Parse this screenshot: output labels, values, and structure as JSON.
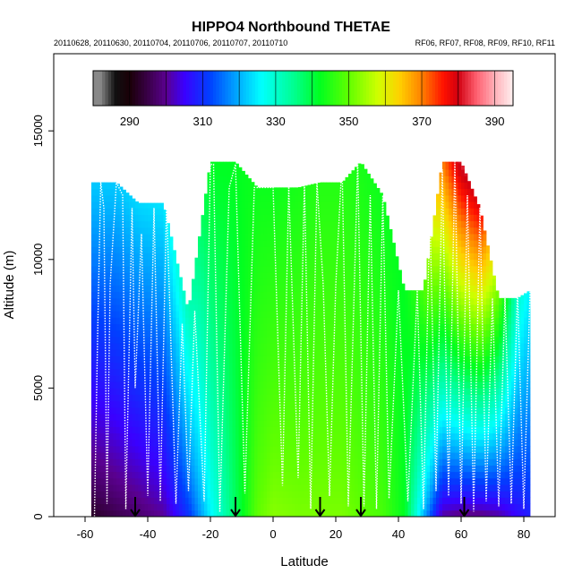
{
  "chart_data": {
    "type": "heatmap",
    "title": "HIPPO4 Northbound THETAE",
    "subtitle_left": "20110628, 20110630, 20110704, 20110706, 20110707, 20110710",
    "subtitle_right": "RF06, RF07, RF08, RF09, RF10, RF11",
    "xlabel": "Latitude",
    "ylabel": "Altitude (m)",
    "xlim": [
      -70,
      90
    ],
    "ylim": [
      0,
      18000
    ],
    "x_ticks": [
      -60,
      -40,
      -20,
      0,
      20,
      40,
      60,
      80
    ],
    "x_tick_labels": [
      "-60",
      "-40",
      "-20",
      "0",
      "20",
      "40",
      "60",
      "80"
    ],
    "y_ticks": [
      0,
      5000,
      10000,
      15000
    ],
    "y_tick_labels": [
      "0",
      "5000",
      "10000",
      "15000"
    ],
    "colorbar": {
      "range": [
        280,
        395
      ],
      "ticks": [
        290,
        310,
        330,
        350,
        370,
        390
      ],
      "tick_labels": [
        "290",
        "310",
        "330",
        "350",
        "370",
        "390"
      ]
    },
    "color_scale": [
      {
        "value": 282,
        "color": "#888888"
      },
      {
        "value": 286,
        "color": "#111111"
      },
      {
        "value": 290,
        "color": "#1a0008"
      },
      {
        "value": 295,
        "color": "#3a0048"
      },
      {
        "value": 300,
        "color": "#5a0090"
      },
      {
        "value": 305,
        "color": "#3a00ff"
      },
      {
        "value": 312,
        "color": "#0040ff"
      },
      {
        "value": 320,
        "color": "#00b0ff"
      },
      {
        "value": 326,
        "color": "#00ffff"
      },
      {
        "value": 335,
        "color": "#00ff90"
      },
      {
        "value": 342,
        "color": "#00ff20"
      },
      {
        "value": 350,
        "color": "#60ff00"
      },
      {
        "value": 358,
        "color": "#d0ff00"
      },
      {
        "value": 364,
        "color": "#ffd000"
      },
      {
        "value": 370,
        "color": "#ff8000"
      },
      {
        "value": 376,
        "color": "#ff1000"
      },
      {
        "value": 380,
        "color": "#d00010"
      },
      {
        "value": 385,
        "color": "#ff6070"
      },
      {
        "value": 390,
        "color": "#ffb0b8"
      },
      {
        "value": 395,
        "color": "#fff0f0"
      }
    ],
    "theta_profile": {
      "latitudes": [
        -58,
        -50,
        -43,
        -35,
        -27,
        -20,
        -12,
        -5,
        0,
        8,
        15,
        22,
        28,
        35,
        42,
        48,
        54,
        60,
        66,
        72,
        78,
        82
      ],
      "surface_values": [
        292,
        295,
        297,
        300,
        310,
        325,
        338,
        350,
        353,
        352,
        352,
        352,
        350,
        348,
        342,
        320,
        300,
        298,
        298,
        300,
        305,
        308
      ],
      "top_values": [
        322,
        322,
        323,
        324,
        332,
        342,
        342,
        343,
        343,
        344,
        345,
        345,
        344,
        343,
        342,
        348,
        370,
        382,
        378,
        350,
        330,
        325
      ],
      "top_altitudes": [
        13000,
        13000,
        12200,
        12200,
        8000,
        13800,
        13800,
        12800,
        12800,
        12800,
        13000,
        13000,
        13800,
        12500,
        8800,
        8800,
        13800,
        13800,
        12000,
        8500,
        8500,
        8800
      ]
    },
    "flight_tracks": [
      {
        "latitudes": [
          -57,
          -56,
          -55,
          -54,
          -53,
          -52,
          -50,
          -48,
          -47
        ],
        "altitudes": [
          0,
          7000,
          13000,
          12000,
          500,
          9000,
          13000,
          12500,
          300
        ]
      },
      {
        "latitudes": [
          -47,
          -45,
          -44,
          -42,
          -40,
          -38,
          -36,
          -34
        ],
        "altitudes": [
          300,
          12000,
          5000,
          11000,
          800,
          12000,
          600,
          12200
        ]
      },
      {
        "latitudes": [
          -34,
          -31,
          -29,
          -27,
          -25,
          -22,
          -20,
          -19,
          -17
        ],
        "altitudes": [
          12200,
          500,
          7500,
          1000,
          8000,
          600,
          13700,
          13700,
          200
        ]
      },
      {
        "latitudes": [
          -17,
          -14,
          -12,
          -9,
          -6,
          -3,
          0,
          3,
          5
        ],
        "altitudes": [
          200,
          12800,
          13700,
          900,
          12800,
          12800,
          12800,
          1200,
          12800
        ]
      },
      {
        "latitudes": [
          5,
          8,
          10,
          12,
          14,
          16,
          18,
          20,
          22,
          24,
          27
        ],
        "altitudes": [
          12800,
          1500,
          13000,
          300,
          13000,
          9000,
          800,
          9000,
          13800,
          400,
          13800
        ]
      },
      {
        "latitudes": [
          27,
          29,
          31,
          33,
          35,
          37,
          40,
          43,
          46,
          48
        ],
        "altitudes": [
          13800,
          400,
          12500,
          300,
          12500,
          700,
          8800,
          600,
          8800,
          300
        ]
      },
      {
        "latitudes": [
          48,
          50,
          52,
          54,
          56,
          58,
          60,
          62,
          64,
          66
        ],
        "altitudes": [
          300,
          12000,
          1000,
          13500,
          800,
          13800,
          500,
          12500,
          200,
          12000
        ]
      },
      {
        "latitudes": [
          66,
          68,
          70,
          72,
          74,
          76,
          78,
          80,
          82
        ],
        "altitudes": [
          12000,
          600,
          8500,
          400,
          8500,
          500,
          8800,
          300,
          8800
        ]
      }
    ],
    "arrow_markers": [
      {
        "latitude": -44,
        "label": ""
      },
      {
        "latitude": -12,
        "label": ""
      },
      {
        "latitude": 15,
        "label": ""
      },
      {
        "latitude": 28,
        "label": ""
      },
      {
        "latitude": 61,
        "label": ""
      }
    ]
  }
}
